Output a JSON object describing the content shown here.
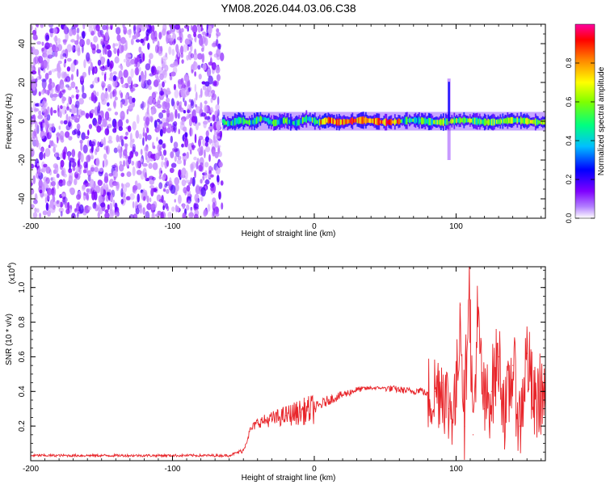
{
  "title": "YM08.2026.044.03.06.C38",
  "chart_data": [
    {
      "type": "heatmap",
      "name": "spectrogram",
      "xlabel": "Height of straight line (km)",
      "ylabel": "Frequency (Hz)",
      "xlim": [
        -200,
        163
      ],
      "ylim": [
        -50,
        50
      ],
      "xticks": [
        -200,
        -100,
        0,
        100
      ],
      "xtick_labels": [
        "-200",
        "-100",
        "0",
        "100"
      ],
      "yticks": [
        -40,
        -20,
        0,
        20,
        40
      ],
      "ytick_labels": [
        "-40",
        "-20",
        "0",
        "20",
        "40"
      ],
      "colorbar": {
        "label": "Normalized spectral amplitude",
        "range": [
          0,
          1
        ],
        "ticks": [
          0.0,
          0.2,
          0.4,
          0.6,
          0.8
        ],
        "tick_labels": [
          "0.0",
          "0.2",
          "0.4",
          "0.6",
          "0.8"
        ],
        "colormap": [
          "#ffffff",
          "#7f00ff",
          "#0000ff",
          "#00bfff",
          "#00ff80",
          "#80ff00",
          "#ffff00",
          "#ff8000",
          "#ff0000",
          "#ff00a0"
        ]
      },
      "noise_region_x": [
        -200,
        -65
      ],
      "signal_band": {
        "x_start": -65,
        "x_end": 163,
        "center_freq_hz": 0,
        "band_halfwidth_hz": 3,
        "spike": {
          "x": 95,
          "freq_range_hz": [
            -20,
            22
          ]
        }
      }
    },
    {
      "type": "line",
      "name": "snr",
      "xlabel": "Height of straight line (km)",
      "ylabel": "SNR (10 * v/v)",
      "y_scale_label": "(x10",
      "y_scale_exp": "4",
      "y_scale_close": ")",
      "xlim": [
        -200,
        163
      ],
      "ylim": [
        0.0,
        1.12
      ],
      "xticks": [
        -200,
        -100,
        0,
        100
      ],
      "xtick_labels": [
        "-200",
        "-100",
        "0",
        "100"
      ],
      "yticks": [
        0.2,
        0.4,
        0.6,
        0.8,
        1.0
      ],
      "ytick_labels": [
        "0.2",
        "0.4",
        "0.6",
        "0.8",
        "1.0"
      ],
      "color": "#e8252a",
      "series": [
        {
          "name": "SNR",
          "x": [
            -200,
            -150,
            -100,
            -60,
            -50,
            -45,
            -40,
            -30,
            -20,
            -10,
            0,
            10,
            20,
            30,
            40,
            50,
            60,
            70,
            75,
            80,
            85,
            90,
            95,
            100,
            103,
            106,
            109,
            112,
            115,
            120,
            125,
            130,
            135,
            140,
            145,
            150,
            155,
            160,
            163
          ],
          "y": [
            0.03,
            0.03,
            0.03,
            0.03,
            0.06,
            0.18,
            0.22,
            0.24,
            0.26,
            0.28,
            0.3,
            0.35,
            0.38,
            0.41,
            0.42,
            0.42,
            0.41,
            0.4,
            0.41,
            0.38,
            0.4,
            0.45,
            0.3,
            0.35,
            0.9,
            0.2,
            1.12,
            0.15,
            0.8,
            0.3,
            0.4,
            0.6,
            0.25,
            0.55,
            0.2,
            0.62,
            0.3,
            0.4,
            0.35
          ]
        }
      ]
    }
  ]
}
